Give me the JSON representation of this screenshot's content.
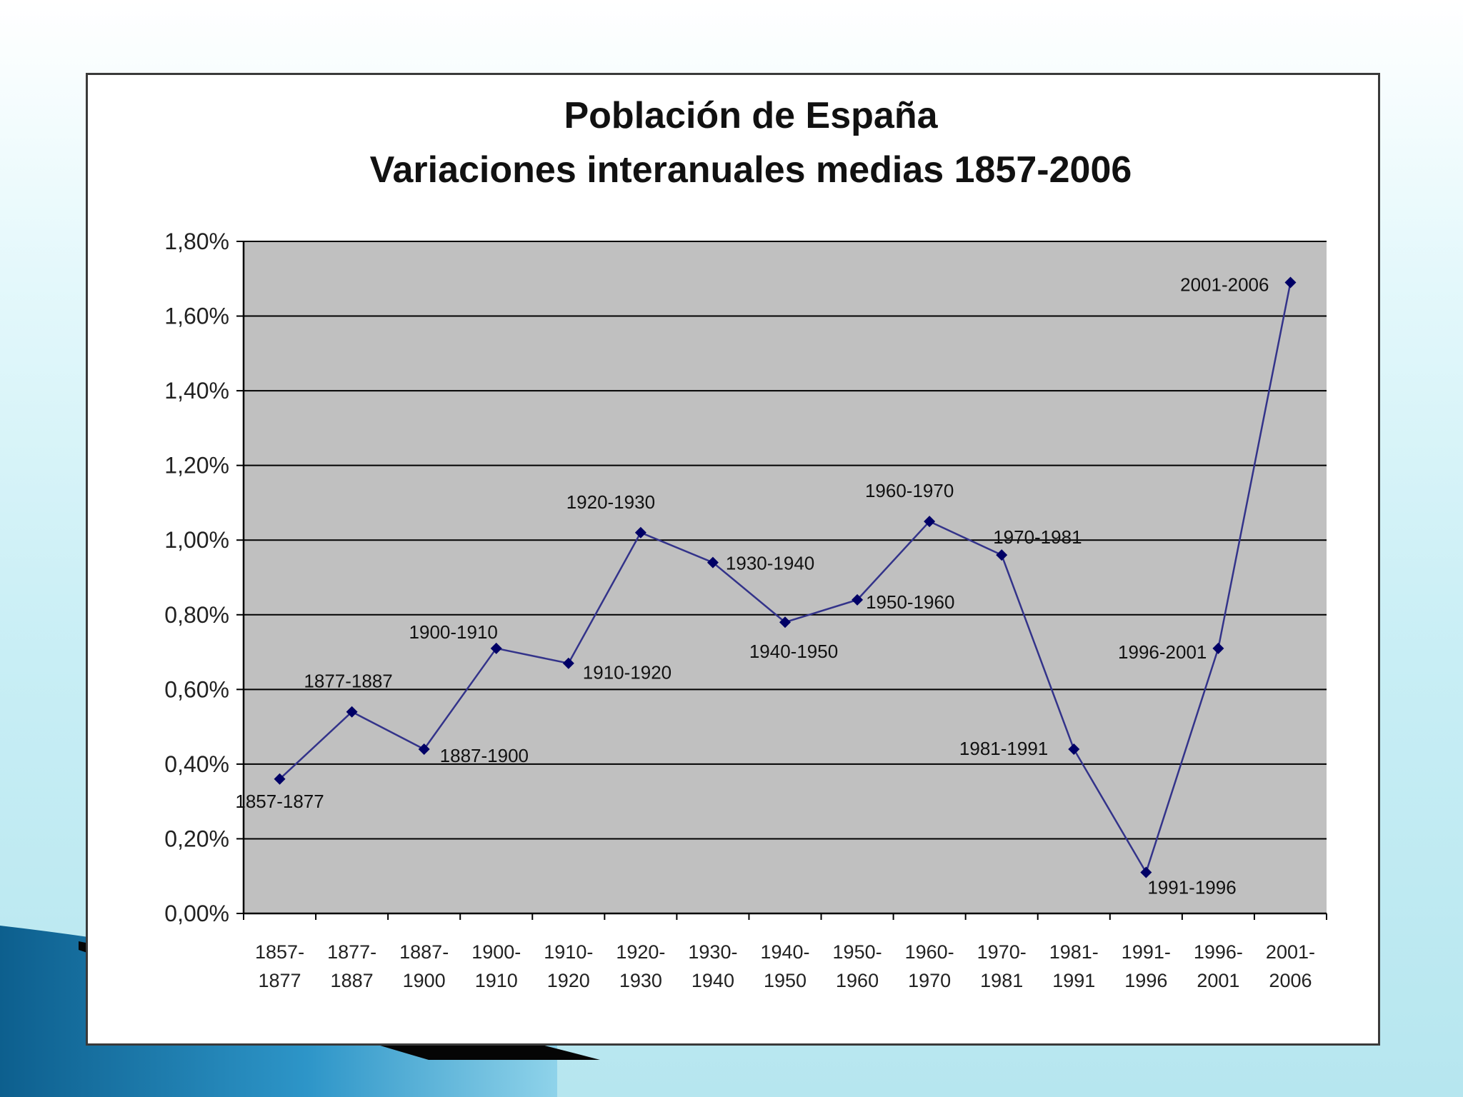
{
  "colors": {
    "plot_background": "#c0c0c0",
    "gridline": "#000000",
    "series_line": "#33338a",
    "marker": "#000066",
    "slide_background": "#c8eef5",
    "decoration_blue": "#1e7fb5"
  },
  "chart_data": {
    "type": "line",
    "title": "Población de España",
    "subtitle": "Variaciones interanuales medias 1857-2006",
    "xlabel": "",
    "ylabel": "",
    "ylim": [
      0,
      1.8
    ],
    "yticks": [
      "0,00%",
      "0,20%",
      "0,40%",
      "0,60%",
      "0,80%",
      "1,00%",
      "1,20%",
      "1,40%",
      "1,60%",
      "1,80%"
    ],
    "grid": true,
    "legend": "none",
    "categories": [
      [
        "1857-",
        "1877"
      ],
      [
        "1877-",
        "1887"
      ],
      [
        "1887-",
        "1900"
      ],
      [
        "1900-",
        "1910"
      ],
      [
        "1910-",
        "1920"
      ],
      [
        "1920-",
        "1930"
      ],
      [
        "1930-",
        "1940"
      ],
      [
        "1940-",
        "1950"
      ],
      [
        "1950-",
        "1960"
      ],
      [
        "1960-",
        "1970"
      ],
      [
        "1970-",
        "1981"
      ],
      [
        "1981-",
        "1991"
      ],
      [
        "1991-",
        "1996"
      ],
      [
        "1996-",
        "2001"
      ],
      [
        "2001-",
        "2006"
      ]
    ],
    "values": [
      0.36,
      0.54,
      0.44,
      0.71,
      0.67,
      1.02,
      0.94,
      0.78,
      0.84,
      1.05,
      0.96,
      0.44,
      0.11,
      0.71,
      1.69
    ],
    "point_labels": [
      "1857-1877",
      "1877-1887",
      "1887-1900",
      "1900-1910",
      "1910-1920",
      "1920-1930",
      "1930-1940",
      "1940-1950",
      "1950-1960",
      "1960-1970",
      "1970-1981",
      "1981-1991",
      "1991-1996",
      "1996-2001",
      "2001-2006"
    ]
  }
}
